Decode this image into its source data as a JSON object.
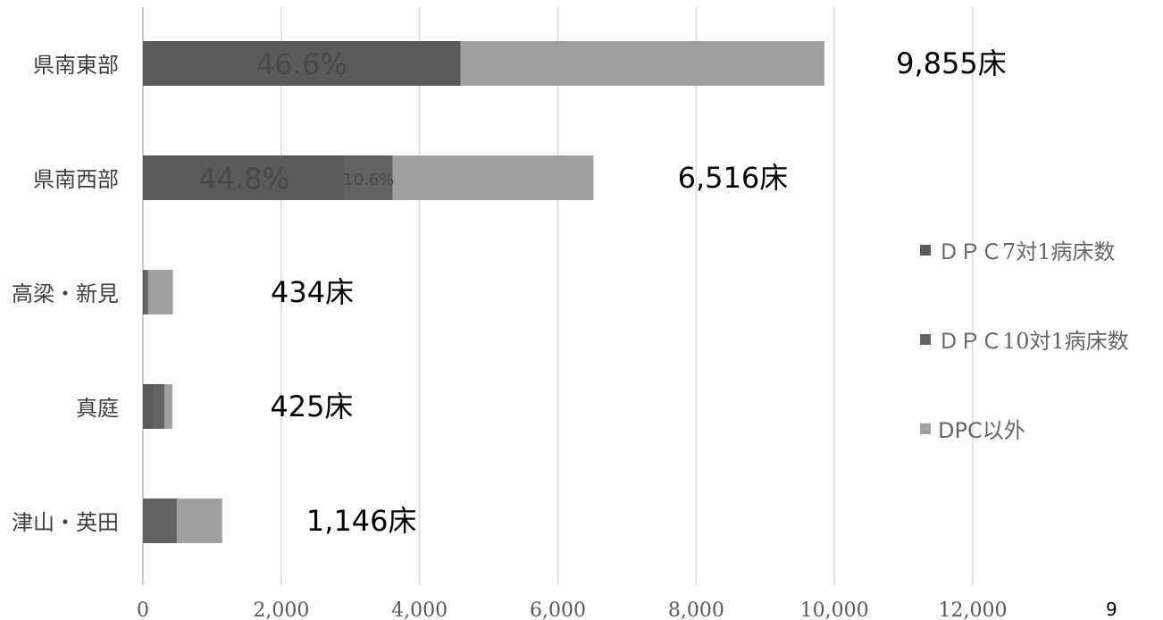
{
  "chart_data": {
    "type": "bar",
    "orientation": "horizontal",
    "stacked": true,
    "categories": [
      "県南東部",
      "県南西部",
      "高梁・新見",
      "真庭",
      "津山・英田"
    ],
    "series": [
      {
        "name": "ＤＰＣ7対1病床数",
        "color": "#5a5a5a",
        "values": [
          4595,
          2920,
          35,
          160,
          0
        ]
      },
      {
        "name": "ＤＰＣ10対1病床数",
        "color": "#626262",
        "values": [
          0,
          690,
          40,
          150,
          490
        ]
      },
      {
        "name": "DPC以外",
        "color": "#a0a0a0",
        "values": [
          5260,
          2906,
          359,
          115,
          656
        ]
      }
    ],
    "totals": [
      9855,
      6516,
      434,
      425,
      1146
    ],
    "total_labels": [
      "9,855床",
      "6,516床",
      "434床",
      "425床",
      "1,146床"
    ],
    "segment_labels": [
      {
        "category": 0,
        "series": 0,
        "text": "46.6%"
      },
      {
        "category": 1,
        "series": 0,
        "text": "44.8%"
      },
      {
        "category": 1,
        "series": 1,
        "text": "10.6%"
      }
    ],
    "xlim": [
      0,
      12000
    ],
    "xticks": [
      0,
      2000,
      4000,
      6000,
      8000,
      10000,
      12000
    ],
    "xtick_labels": [
      "0",
      "2,000",
      "4,000",
      "6,000",
      "8,000",
      "10,000",
      "12,000"
    ],
    "grid": true,
    "legend_position": "right"
  },
  "page_number": "9"
}
